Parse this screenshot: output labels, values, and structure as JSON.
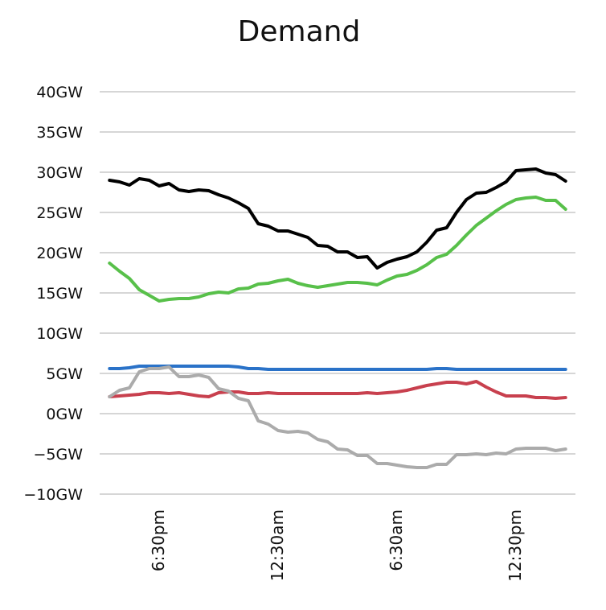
{
  "chart_data": {
    "type": "line",
    "title": "Demand",
    "xlabel": "",
    "ylabel": "",
    "ylim": [
      -10,
      40
    ],
    "y_ticks": [
      40,
      35,
      30,
      25,
      20,
      15,
      10,
      5,
      0,
      -5,
      -10
    ],
    "y_tick_labels": [
      "40GW",
      "35GW",
      "30GW",
      "25GW",
      "20GW",
      "15GW",
      "10GW",
      "5GW",
      "0GW",
      "−5GW",
      "−10GW"
    ],
    "x_tick_labels": [
      "6:30pm",
      "12:30am",
      "6:30am",
      "12:30pm"
    ],
    "x_ticks": [
      6.5,
      12.5,
      18.5,
      24.5
    ],
    "xlim": [
      3.5,
      27.5
    ],
    "grid": true,
    "legend": "none",
    "x": [
      4.0,
      4.5,
      5.0,
      5.5,
      6.0,
      6.5,
      7.0,
      7.5,
      8.0,
      8.5,
      9.0,
      9.5,
      10.0,
      10.5,
      11.0,
      11.5,
      12.0,
      12.5,
      13.0,
      13.5,
      14.0,
      14.5,
      15.0,
      15.5,
      16.0,
      16.5,
      17.0,
      17.5,
      18.0,
      18.5,
      19.0,
      19.5,
      20.0,
      20.5,
      21.0,
      21.5,
      22.0,
      22.5,
      23.0,
      23.5,
      24.0,
      24.5,
      25.0,
      25.5,
      26.0,
      26.5,
      27.0
    ],
    "series": [
      {
        "color": "#000000",
        "values": [
          29.0,
          28.8,
          28.4,
          29.2,
          29.0,
          28.3,
          28.6,
          27.8,
          27.6,
          27.8,
          27.7,
          27.2,
          26.8,
          26.2,
          25.5,
          23.6,
          23.3,
          22.7,
          22.7,
          22.3,
          21.9,
          20.9,
          20.8,
          20.1,
          20.1,
          19.4,
          19.5,
          18.1,
          18.8,
          19.2,
          19.5,
          20.1,
          21.3,
          22.8,
          23.1,
          25.0,
          26.6,
          27.4,
          27.5,
          28.1,
          28.8,
          30.2,
          30.3,
          30.4,
          29.9,
          29.7,
          28.9
        ]
      },
      {
        "color": "#58c04a",
        "values": [
          18.7,
          17.7,
          16.8,
          15.4,
          14.7,
          14.0,
          14.2,
          14.3,
          14.3,
          14.5,
          14.9,
          15.1,
          15.0,
          15.5,
          15.6,
          16.1,
          16.2,
          16.5,
          16.7,
          16.2,
          15.9,
          15.7,
          15.9,
          16.1,
          16.3,
          16.3,
          16.2,
          16.0,
          16.6,
          17.1,
          17.3,
          17.8,
          18.5,
          19.4,
          19.8,
          20.9,
          22.2,
          23.4,
          24.3,
          25.2,
          26.0,
          26.6,
          26.8,
          26.9,
          26.5,
          26.5,
          25.4
        ]
      },
      {
        "color": "#2a72c8",
        "values": [
          5.6,
          5.6,
          5.7,
          5.9,
          5.9,
          5.9,
          5.9,
          5.9,
          5.9,
          5.9,
          5.9,
          5.9,
          5.9,
          5.8,
          5.6,
          5.6,
          5.5,
          5.5,
          5.5,
          5.5,
          5.5,
          5.5,
          5.5,
          5.5,
          5.5,
          5.5,
          5.5,
          5.5,
          5.5,
          5.5,
          5.5,
          5.5,
          5.5,
          5.6,
          5.6,
          5.5,
          5.5,
          5.5,
          5.5,
          5.5,
          5.5,
          5.5,
          5.5,
          5.5,
          5.5,
          5.5,
          5.5
        ]
      },
      {
        "color": "#c8404e",
        "values": [
          2.1,
          2.2,
          2.3,
          2.4,
          2.6,
          2.6,
          2.5,
          2.6,
          2.4,
          2.2,
          2.1,
          2.6,
          2.7,
          2.7,
          2.5,
          2.5,
          2.6,
          2.5,
          2.5,
          2.5,
          2.5,
          2.5,
          2.5,
          2.5,
          2.5,
          2.5,
          2.6,
          2.5,
          2.6,
          2.7,
          2.9,
          3.2,
          3.5,
          3.7,
          3.9,
          3.9,
          3.7,
          4.0,
          3.3,
          2.7,
          2.2,
          2.2,
          2.2,
          2.0,
          2.0,
          1.9,
          2.0
        ]
      },
      {
        "color": "#ababab",
        "values": [
          2.1,
          2.9,
          3.2,
          5.2,
          5.6,
          5.6,
          5.8,
          4.6,
          4.6,
          4.8,
          4.5,
          3.1,
          2.8,
          1.9,
          1.6,
          -0.9,
          -1.3,
          -2.1,
          -2.3,
          -2.2,
          -2.4,
          -3.2,
          -3.5,
          -4.4,
          -4.5,
          -5.2,
          -5.2,
          -6.2,
          -6.2,
          -6.4,
          -6.6,
          -6.7,
          -6.7,
          -6.3,
          -6.3,
          -5.1,
          -5.1,
          -5.0,
          -5.1,
          -4.9,
          -5.0,
          -4.4,
          -4.3,
          -4.3,
          -4.3,
          -4.6,
          -4.4
        ]
      }
    ]
  }
}
